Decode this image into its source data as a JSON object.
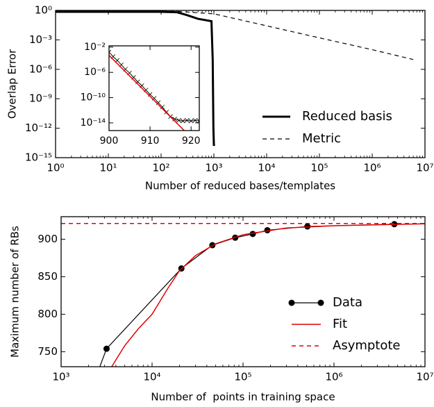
{
  "chart_data": [
    {
      "type": "line",
      "xlabel": "Number of reduced bases/templates",
      "ylabel": "Overlap Error",
      "xscale": "log",
      "yscale": "log",
      "xlim": [
        1,
        10000000
      ],
      "ylim": [
        1e-15,
        1
      ],
      "xticks": [
        {
          "value": 1,
          "label": "10⁰"
        },
        {
          "value": 10,
          "label": "10¹"
        },
        {
          "value": 100,
          "label": "10²"
        },
        {
          "value": 1000,
          "label": "10³"
        },
        {
          "value": 10000,
          "label": "10⁴"
        },
        {
          "value": 100000,
          "label": "10⁵"
        },
        {
          "value": 1000000,
          "label": "10⁶"
        },
        {
          "value": 10000000,
          "label": "10⁷"
        }
      ],
      "yticks": [
        {
          "value": 1,
          "label": "10⁰"
        },
        {
          "value": 0.001,
          "label": "10⁻³"
        },
        {
          "value": 1e-06,
          "label": "10⁻⁶"
        },
        {
          "value": 1e-09,
          "label": "10⁻⁹"
        },
        {
          "value": 1e-12,
          "label": "10⁻¹²"
        },
        {
          "value": 1e-15,
          "label": "10⁻¹⁵"
        }
      ],
      "legend": "lower right",
      "series": [
        {
          "name": "Reduced basis",
          "color": "#000000",
          "width": 3,
          "x": [
            1,
            100,
            200,
            300,
            500,
            900,
            950,
            980,
            1000,
            1050
          ],
          "values": [
            0.72,
            0.72,
            0.65,
            0.35,
            0.14,
            0.08,
            1e-05,
            1e-12,
            2e-14,
            2e-14
          ]
        },
        {
          "name": "Metric",
          "color": "#000000",
          "width": 1.2,
          "dash": true,
          "x": [
            1,
            200,
            1000,
            10000,
            100000,
            1000000,
            6000000
          ],
          "values": [
            0.9,
            0.8,
            0.45,
            0.027,
            0.0016,
            0.0001,
            1e-05
          ]
        }
      ]
    },
    {
      "type": "line",
      "xscale": "linear",
      "yscale": "log",
      "xlim": [
        900,
        922
      ],
      "ylim": [
        6e-16,
        0.016
      ],
      "xticks": [
        900,
        910,
        920
      ],
      "yticks": [
        {
          "value": 0.01,
          "label": "10⁻²"
        },
        {
          "value": 1e-06,
          "label": "10⁻⁶"
        },
        {
          "value": 1e-10,
          "label": "10⁻¹⁰"
        },
        {
          "value": 1e-14,
          "label": "10⁻¹⁴"
        }
      ],
      "series": [
        {
          "color": "#000000",
          "width": 0.8,
          "marker": "x",
          "x": [
            900,
            901,
            902,
            903,
            904,
            905,
            906,
            907,
            908,
            909,
            910,
            911,
            912,
            913,
            914,
            915,
            916,
            917,
            918,
            919,
            920,
            921,
            922
          ],
          "values": [
            0.0016,
            0.00032,
            7.9e-05,
            1.6e-05,
            3.2e-06,
            7.9e-07,
            1.6e-07,
            3.2e-08,
            7.9e-09,
            1.6e-09,
            3.2e-10,
            7.9e-11,
            1.6e-11,
            3.2e-12,
            5e-13,
            1e-13,
            4e-14,
            2.5e-14,
            2e-14,
            2.5e-14,
            2e-14,
            2.5e-14,
            2e-14
          ]
        },
        {
          "color": "#e00000",
          "width": 1.5,
          "x": [
            900,
            920
          ],
          "values": [
            0.0005,
            5e-17
          ]
        }
      ]
    },
    {
      "type": "line",
      "xlabel": "Number of  points in training space",
      "ylabel": "Maximum number of RBs",
      "xscale": "log",
      "yscale": "linear",
      "xlim": [
        1000,
        10000000
      ],
      "ylim": [
        730,
        930
      ],
      "xticks": [
        {
          "value": 1000,
          "label": "10³"
        },
        {
          "value": 10000,
          "label": "10⁴"
        },
        {
          "value": 100000,
          "label": "10⁵"
        },
        {
          "value": 1000000,
          "label": "10⁶"
        },
        {
          "value": 10000000,
          "label": "10⁷"
        }
      ],
      "yticks": [
        750,
        800,
        850,
        900
      ],
      "legend": "lower right",
      "series": [
        {
          "name": "Data",
          "color": "#000000",
          "width": 1.2,
          "marker": "o",
          "x": [
            2000,
            3160,
            21000,
            46000,
            82000,
            128000,
            185000,
            510000,
            4600000
          ],
          "values": [
            690,
            754,
            861,
            892,
            902,
            907,
            912,
            917,
            920
          ]
        },
        {
          "name": "Fit",
          "color": "#e00000",
          "width": 1.5,
          "x": [
            3600,
            5000,
            7000,
            10000,
            15000,
            20000,
            30000,
            50000,
            100000,
            300000,
            1000000,
            10000000
          ],
          "values": [
            730,
            758,
            780,
            800,
            835,
            858,
            878,
            894,
            906,
            915,
            918,
            920.5
          ]
        },
        {
          "name": "Asymptote",
          "color": "#e00000",
          "width": 1.5,
          "dash": true,
          "x": [
            1000,
            10000000
          ],
          "values": [
            921,
            921
          ]
        }
      ]
    }
  ]
}
